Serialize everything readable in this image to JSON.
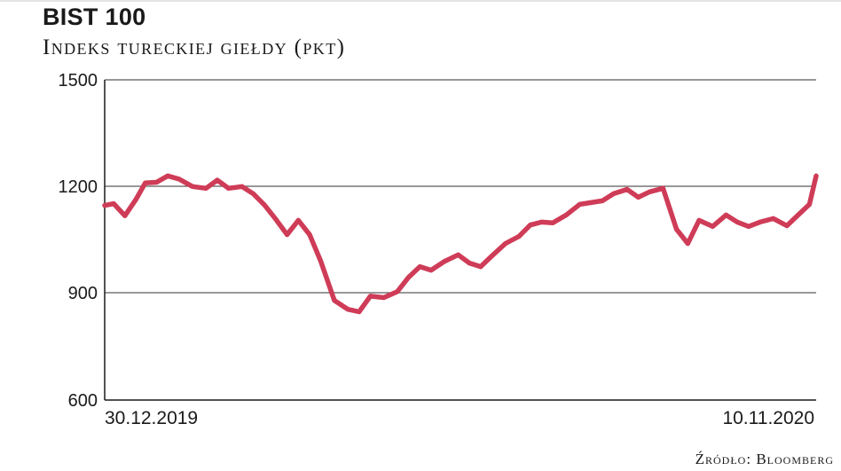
{
  "header": {
    "title": "BIST 100",
    "subtitle": "Indeks tureckiej giełdy (pkt)"
  },
  "footer": {
    "source": "Źródło: Bloomberg"
  },
  "colors": {
    "line": "#cf3c57",
    "grid": "#5a5a5a",
    "axis": "#1a1a1a",
    "text": "#1a1a1a"
  },
  "chart_data": {
    "type": "line",
    "title": "BIST 100",
    "subtitle": "Indeks tureckiej giełdy (pkt)",
    "xlabel": "",
    "ylabel": "",
    "ylim": [
      600,
      1500
    ],
    "yticks": [
      1500,
      1200,
      900,
      600
    ],
    "ytick_labels": [
      "1500",
      "1200",
      "900",
      "600"
    ],
    "xlim": [
      "2019-12-30",
      "2020-11-10"
    ],
    "xtick_labels": [
      "30.12.2019",
      "10.11.2020"
    ],
    "grid": "horizontal",
    "legend": "none",
    "series": [
      {
        "x": [
          "2019-12-30",
          "2020-01-03",
          "2020-01-08",
          "2020-01-13",
          "2020-01-17",
          "2020-01-22",
          "2020-01-27",
          "2020-02-01",
          "2020-02-07",
          "2020-02-13",
          "2020-02-18",
          "2020-02-23",
          "2020-02-29",
          "2020-03-05",
          "2020-03-10",
          "2020-03-15",
          "2020-03-20",
          "2020-03-25",
          "2020-03-30",
          "2020-04-04",
          "2020-04-10",
          "2020-04-16",
          "2020-04-21",
          "2020-04-26",
          "2020-05-02",
          "2020-05-08",
          "2020-05-13",
          "2020-05-18",
          "2020-05-23",
          "2020-05-29",
          "2020-06-04",
          "2020-06-09",
          "2020-06-14",
          "2020-06-19",
          "2020-06-25",
          "2020-07-01",
          "2020-07-06",
          "2020-07-11",
          "2020-07-16",
          "2020-07-22",
          "2020-07-28",
          "2020-08-02",
          "2020-08-07",
          "2020-08-12",
          "2020-08-18",
          "2020-08-23",
          "2020-08-28",
          "2020-09-03",
          "2020-09-09",
          "2020-09-14",
          "2020-09-19",
          "2020-09-25",
          "2020-10-01",
          "2020-10-06",
          "2020-10-11",
          "2020-10-16",
          "2020-10-22",
          "2020-10-28",
          "2020-11-02",
          "2020-11-07",
          "2020-11-10"
        ],
        "values": [
          1147,
          1152,
          1118,
          1165,
          1210,
          1212,
          1230,
          1221,
          1200,
          1195,
          1218,
          1195,
          1200,
          1180,
          1148,
          1108,
          1065,
          1105,
          1065,
          990,
          880,
          855,
          848,
          892,
          888,
          905,
          945,
          975,
          965,
          990,
          1008,
          985,
          975,
          1005,
          1040,
          1060,
          1092,
          1100,
          1098,
          1120,
          1150,
          1155,
          1160,
          1180,
          1192,
          1170,
          1185,
          1195,
          1080,
          1040,
          1105,
          1088,
          1120,
          1100,
          1088,
          1100,
          1110,
          1090,
          1120,
          1150,
          1230
        ]
      }
    ]
  }
}
